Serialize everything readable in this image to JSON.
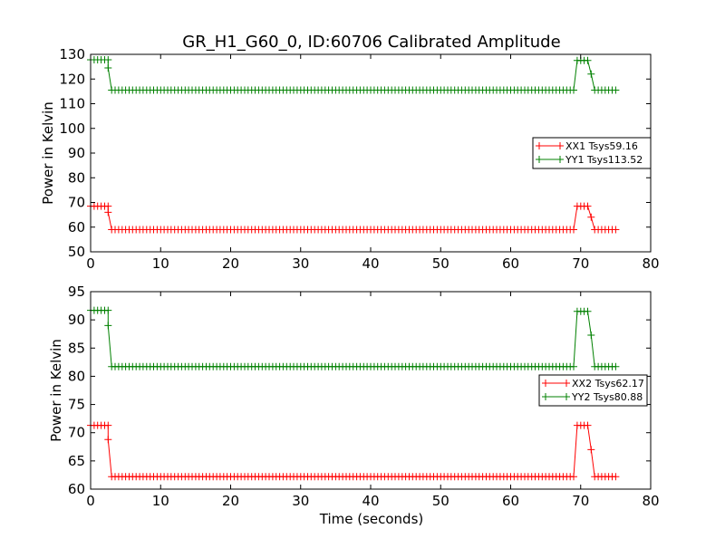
{
  "figure": {
    "title": "GR_H1_G60_0, ID:60706 Calibrated Amplitude",
    "xlabel": "Time (seconds)"
  },
  "colors": {
    "xx": "#ff0000",
    "yy": "#008000"
  },
  "chart_data": [
    {
      "type": "line",
      "title": "GR_H1_G60_0, ID:60706 Calibrated Amplitude",
      "xlabel": "",
      "ylabel": "Power in Kelvin",
      "xlim": [
        0,
        80
      ],
      "ylim": [
        50,
        130
      ],
      "xticks": [
        "0",
        "10",
        "20",
        "30",
        "40",
        "50",
        "60",
        "70",
        "80"
      ],
      "yticks": [
        "50",
        "60",
        "70",
        "80",
        "90",
        "100",
        "110",
        "120",
        "130"
      ],
      "grid": false,
      "legend_position": "right",
      "marker": "+",
      "sample_step_seconds": 0.5,
      "x_range": [
        0,
        75
      ],
      "series": [
        {
          "name": "XX1 Tsys59.16",
          "color": "#ff0000",
          "segments": [
            {
              "x": [
                0,
                2.5
              ],
              "y": 68.5
            },
            {
              "x": 2.5,
              "y": 66.0
            },
            {
              "x": [
                3.0,
                69.0
              ],
              "y": 59.0
            },
            {
              "x": [
                69.5,
                71.0
              ],
              "y": 68.5
            },
            {
              "x": 71.5,
              "y": 64.0
            },
            {
              "x": [
                72.0,
                75.0
              ],
              "y": 59.0
            }
          ]
        },
        {
          "name": "YY1 Tsys113.52",
          "color": "#008000",
          "segments": [
            {
              "x": [
                0,
                2.5
              ],
              "y": 127.8
            },
            {
              "x": 2.5,
              "y": 124.5
            },
            {
              "x": [
                3.0,
                69.0
              ],
              "y": 115.5
            },
            {
              "x": [
                69.5,
                71.0
              ],
              "y": 127.5
            },
            {
              "x": 71.5,
              "y": 122.0
            },
            {
              "x": [
                72.0,
                75.0
              ],
              "y": 115.5
            }
          ]
        }
      ]
    },
    {
      "type": "line",
      "title": "",
      "xlabel": "Time (seconds)",
      "ylabel": "Power in Kelvin",
      "xlim": [
        0,
        80
      ],
      "ylim": [
        60,
        95
      ],
      "xticks": [
        "0",
        "10",
        "20",
        "30",
        "40",
        "50",
        "60",
        "70",
        "80"
      ],
      "yticks": [
        "60",
        "65",
        "70",
        "75",
        "80",
        "85",
        "90",
        "95"
      ],
      "grid": false,
      "legend_position": "right",
      "marker": "+",
      "sample_step_seconds": 0.5,
      "x_range": [
        0,
        75
      ],
      "series": [
        {
          "name": "XX2 Tsys62.17",
          "color": "#ff0000",
          "segments": [
            {
              "x": [
                0,
                2.5
              ],
              "y": 71.3
            },
            {
              "x": 2.5,
              "y": 68.8
            },
            {
              "x": [
                3.0,
                69.0
              ],
              "y": 62.2
            },
            {
              "x": [
                69.5,
                71.0
              ],
              "y": 71.3
            },
            {
              "x": 71.5,
              "y": 67.0
            },
            {
              "x": [
                72.0,
                75.0
              ],
              "y": 62.2
            }
          ]
        },
        {
          "name": "YY2 Tsys80.88",
          "color": "#008000",
          "segments": [
            {
              "x": [
                0,
                2.5
              ],
              "y": 91.7
            },
            {
              "x": 2.5,
              "y": 89.0
            },
            {
              "x": [
                3.0,
                69.0
              ],
              "y": 81.7
            },
            {
              "x": [
                69.5,
                71.0
              ],
              "y": 91.5
            },
            {
              "x": 71.5,
              "y": 87.3
            },
            {
              "x": [
                72.0,
                75.0
              ],
              "y": 81.7
            }
          ]
        }
      ]
    }
  ]
}
